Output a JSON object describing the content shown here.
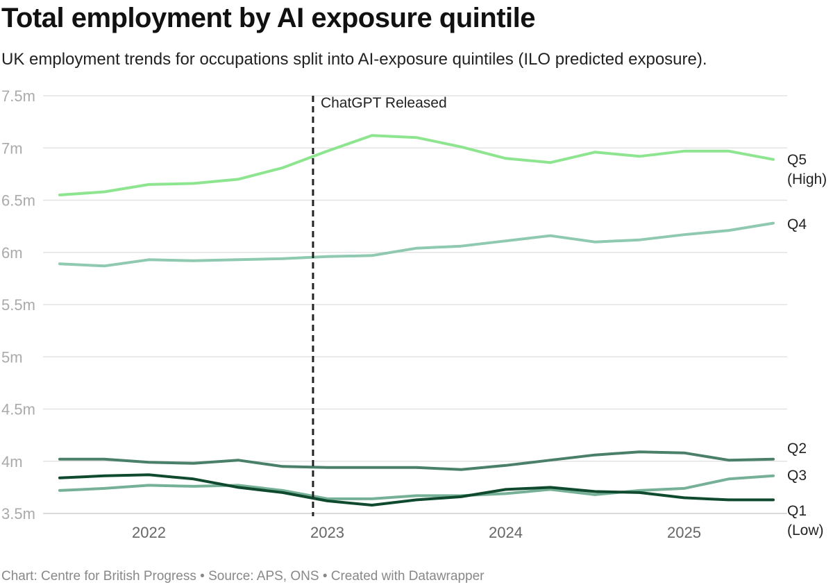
{
  "title": "Total employment by AI exposure quintile",
  "subtitle": "UK employment trends for occupations split into AI-exposure quintiles (ILO predicted exposure).",
  "footer": "Chart: Centre for British Progress • Source: APS, ONS • Created with Datawrapper",
  "chart_data": {
    "type": "line",
    "title": "Total employment by AI exposure quintile",
    "subtitle": "UK employment trends for occupations split into AI-exposure quintiles (ILO predicted exposure).",
    "xlabel": "",
    "ylabel": "",
    "ylim": [
      3.5,
      7.5
    ],
    "xlim": [
      2021.5,
      2025.5
    ],
    "grid": true,
    "legend": "direct labels at right end of lines",
    "y_ticks": [
      {
        "value": 7.5,
        "label": "7.5m"
      },
      {
        "value": 7.0,
        "label": "7m"
      },
      {
        "value": 6.5,
        "label": "6.5m"
      },
      {
        "value": 6.0,
        "label": "6m"
      },
      {
        "value": 5.5,
        "label": "5.5m"
      },
      {
        "value": 5.0,
        "label": "5m"
      },
      {
        "value": 4.5,
        "label": "4.5m"
      },
      {
        "value": 4.0,
        "label": "4m"
      },
      {
        "value": 3.5,
        "label": "3.5m"
      }
    ],
    "x_ticks": [
      {
        "value": 2022.0,
        "label": "2022"
      },
      {
        "value": 2023.0,
        "label": "2023"
      },
      {
        "value": 2024.0,
        "label": "2024"
      },
      {
        "value": 2025.0,
        "label": "2025"
      }
    ],
    "annotation": {
      "x": 2022.92,
      "label": "ChatGPT Released"
    },
    "x": [
      2021.5,
      2021.75,
      2022.0,
      2022.25,
      2022.5,
      2022.75,
      2023.0,
      2023.25,
      2023.5,
      2023.75,
      2024.0,
      2024.25,
      2024.5,
      2024.75,
      2025.0,
      2025.25,
      2025.5
    ],
    "series": [
      {
        "name": "Q5 (High)",
        "label_lines": [
          "Q5",
          "(High)"
        ],
        "color": "#8ee58f",
        "values": [
          6.55,
          6.58,
          6.65,
          6.66,
          6.7,
          6.81,
          6.97,
          7.12,
          7.1,
          7.01,
          6.9,
          6.86,
          6.96,
          6.92,
          6.97,
          6.97,
          6.89
        ]
      },
      {
        "name": "Q4",
        "label_lines": [
          "Q4"
        ],
        "color": "#8fc9b0",
        "values": [
          5.89,
          5.87,
          5.93,
          5.92,
          5.93,
          5.94,
          5.96,
          5.97,
          6.04,
          6.06,
          6.11,
          6.16,
          6.1,
          6.12,
          6.17,
          6.21,
          6.28
        ]
      },
      {
        "name": "Q2",
        "label_lines": [
          "Q2"
        ],
        "color": "#4a7f6a",
        "values": [
          4.02,
          4.02,
          3.99,
          3.98,
          4.01,
          3.95,
          3.94,
          3.94,
          3.94,
          3.92,
          3.96,
          4.01,
          4.06,
          4.09,
          4.08,
          4.01,
          4.02
        ]
      },
      {
        "name": "Q3",
        "label_lines": [
          "Q3"
        ],
        "color": "#76b097",
        "values": [
          3.72,
          3.74,
          3.77,
          3.76,
          3.77,
          3.72,
          3.64,
          3.64,
          3.67,
          3.67,
          3.69,
          3.73,
          3.68,
          3.72,
          3.74,
          3.83,
          3.86
        ]
      },
      {
        "name": "Q1 (Low)",
        "label_lines": [
          "Q1",
          "(Low)"
        ],
        "color": "#0f4a2e",
        "values": [
          3.84,
          3.86,
          3.87,
          3.83,
          3.75,
          3.7,
          3.62,
          3.58,
          3.63,
          3.66,
          3.73,
          3.75,
          3.71,
          3.7,
          3.65,
          3.63,
          3.63
        ]
      }
    ]
  }
}
